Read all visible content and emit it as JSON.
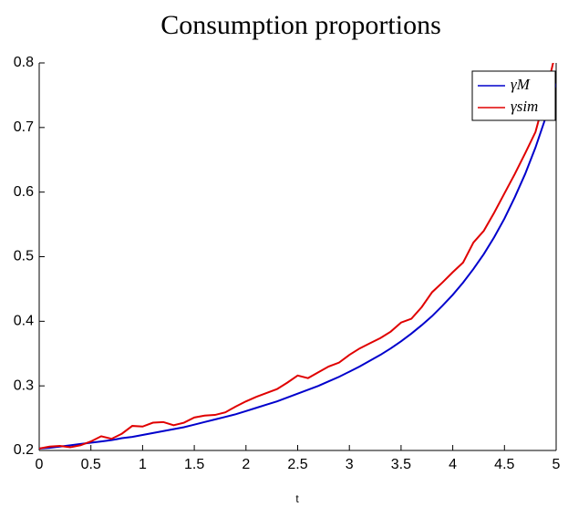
{
  "chart_data": {
    "type": "line",
    "title": "Consumption proportions",
    "x_label": "t",
    "x": [
      0,
      0.1,
      0.2,
      0.3,
      0.4,
      0.5,
      0.6,
      0.7,
      0.8,
      0.9,
      1,
      1.1,
      1.2,
      1.3,
      1.4,
      1.5,
      1.6,
      1.7,
      1.8,
      1.9,
      2,
      2.1,
      2.2,
      2.3,
      2.4,
      2.5,
      2.6,
      2.7,
      2.8,
      2.9,
      3,
      3.1,
      3.2,
      3.3,
      3.4,
      3.5,
      3.6,
      3.7,
      3.8,
      3.9,
      4,
      4.1,
      4.2,
      4.3,
      4.4,
      4.5,
      4.6,
      4.7,
      4.8,
      4.9,
      5
    ],
    "series": [
      {
        "name": "γM",
        "color": "#0000cc",
        "values": [
          0.203,
          0.204,
          0.206,
          0.208,
          0.21,
          0.212,
          0.214,
          0.216,
          0.219,
          0.221,
          0.224,
          0.227,
          0.23,
          0.233,
          0.236,
          0.24,
          0.244,
          0.248,
          0.252,
          0.256,
          0.261,
          0.266,
          0.271,
          0.276,
          0.282,
          0.288,
          0.294,
          0.3,
          0.307,
          0.314,
          0.322,
          0.33,
          0.339,
          0.348,
          0.358,
          0.369,
          0.381,
          0.394,
          0.408,
          0.424,
          0.441,
          0.46,
          0.481,
          0.504,
          0.53,
          0.559,
          0.592,
          0.628,
          0.669,
          0.716,
          0.768
        ]
      },
      {
        "name": "γsim",
        "color": "#e00000",
        "values": [
          0.203,
          0.206,
          0.207,
          0.205,
          0.208,
          0.214,
          0.222,
          0.218,
          0.226,
          0.238,
          0.237,
          0.243,
          0.244,
          0.239,
          0.243,
          0.251,
          0.254,
          0.255,
          0.259,
          0.268,
          0.276,
          0.283,
          0.289,
          0.295,
          0.305,
          0.316,
          0.312,
          0.321,
          0.33,
          0.336,
          0.348,
          0.358,
          0.366,
          0.374,
          0.384,
          0.398,
          0.404,
          0.422,
          0.445,
          0.46,
          0.476,
          0.491,
          0.522,
          0.54,
          0.568,
          0.598,
          0.628,
          0.66,
          0.693,
          0.752,
          0.82
        ]
      }
    ],
    "xlim": [
      0,
      5
    ],
    "ylim": [
      0.2,
      0.8
    ],
    "xticks": [
      0,
      0.5,
      1,
      1.5,
      2,
      2.5,
      3,
      3.5,
      4,
      4.5,
      5
    ],
    "yticks": [
      0.2,
      0.3,
      0.4,
      0.5,
      0.6,
      0.7,
      0.8
    ],
    "legend": "top-right"
  }
}
